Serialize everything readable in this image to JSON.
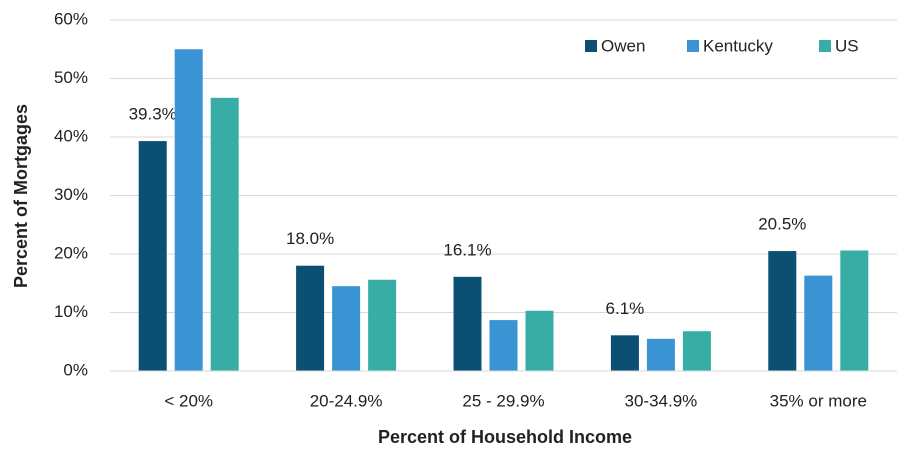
{
  "chart_data": {
    "type": "bar",
    "x_label": "Percent of Household Income",
    "y_label": "Percent of Mortgages",
    "categories": [
      "< 20%",
      "20-24.9%",
      "25 - 29.9%",
      "30-34.9%",
      "35% or more"
    ],
    "series": [
      {
        "name": "Owen",
        "color": "#0b5072",
        "values": [
          39.3,
          18.0,
          16.1,
          6.1,
          20.5
        ],
        "value_labels": [
          "39.3%",
          "18.0%",
          "16.1%",
          "6.1%",
          "20.5%"
        ]
      },
      {
        "name": "Kentucky",
        "color": "#3a93d2",
        "values": [
          55.0,
          14.5,
          8.7,
          5.5,
          16.3
        ]
      },
      {
        "name": "US",
        "color": "#38ada6",
        "values": [
          46.7,
          15.6,
          10.3,
          6.8,
          20.6
        ]
      }
    ],
    "ylim": [
      0,
      60
    ],
    "yticks": [
      {
        "value": 0,
        "label": "0%"
      },
      {
        "value": 10,
        "label": "10%"
      },
      {
        "value": 20,
        "label": "20%"
      },
      {
        "value": 30,
        "label": "30%"
      },
      {
        "value": 40,
        "label": "40%"
      },
      {
        "value": 50,
        "label": "50%"
      },
      {
        "value": 60,
        "label": "60%"
      }
    ],
    "grid": true,
    "legend": "top-right"
  }
}
